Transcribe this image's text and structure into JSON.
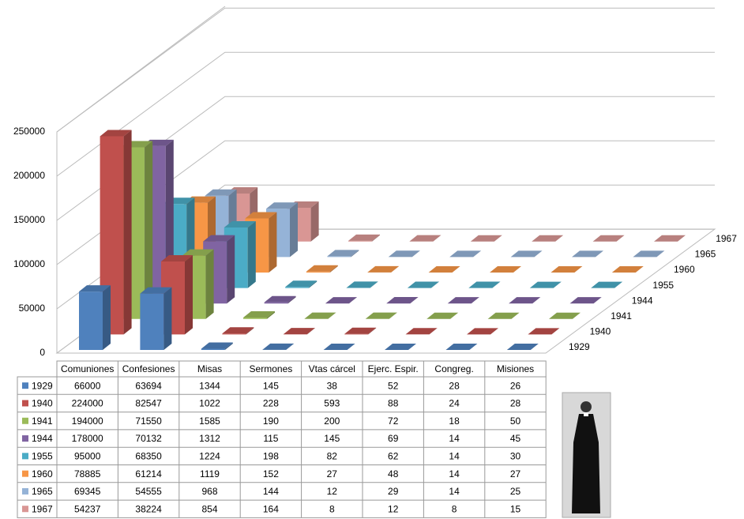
{
  "chart_data": {
    "type": "bar3d",
    "categories": [
      "Comuniones",
      "Confesiones",
      "Misas",
      "Sermones",
      "Vtas cárcel",
      "Ejerc. Espir.",
      "Congreg.",
      "Misiones"
    ],
    "series": [
      {
        "name": "1929",
        "color": "#4f81bd",
        "values": [
          66000,
          63694,
          1344,
          145,
          38,
          52,
          28,
          26
        ]
      },
      {
        "name": "1940",
        "color": "#c0504d",
        "values": [
          224000,
          82547,
          1022,
          228,
          593,
          88,
          24,
          28
        ]
      },
      {
        "name": "1941",
        "color": "#9bbb59",
        "values": [
          194000,
          71550,
          1585,
          190,
          200,
          72,
          18,
          50
        ]
      },
      {
        "name": "1944",
        "color": "#8064a2",
        "values": [
          178000,
          70132,
          1312,
          115,
          145,
          69,
          14,
          45
        ]
      },
      {
        "name": "1955",
        "color": "#4bacc6",
        "values": [
          95000,
          68350,
          1224,
          198,
          82,
          62,
          14,
          30
        ]
      },
      {
        "name": "1960",
        "color": "#f79646",
        "values": [
          78885,
          61214,
          1119,
          152,
          27,
          48,
          14,
          27
        ]
      },
      {
        "name": "1965",
        "color": "#95b3d7",
        "values": [
          69345,
          54555,
          968,
          144,
          12,
          29,
          14,
          25
        ]
      },
      {
        "name": "1967",
        "color": "#d99694",
        "values": [
          54237,
          38224,
          854,
          164,
          8,
          12,
          8,
          15
        ]
      }
    ],
    "ylim": [
      0,
      250000
    ],
    "yticks": [
      0,
      50000,
      100000,
      150000,
      200000,
      250000
    ],
    "grid": true
  }
}
